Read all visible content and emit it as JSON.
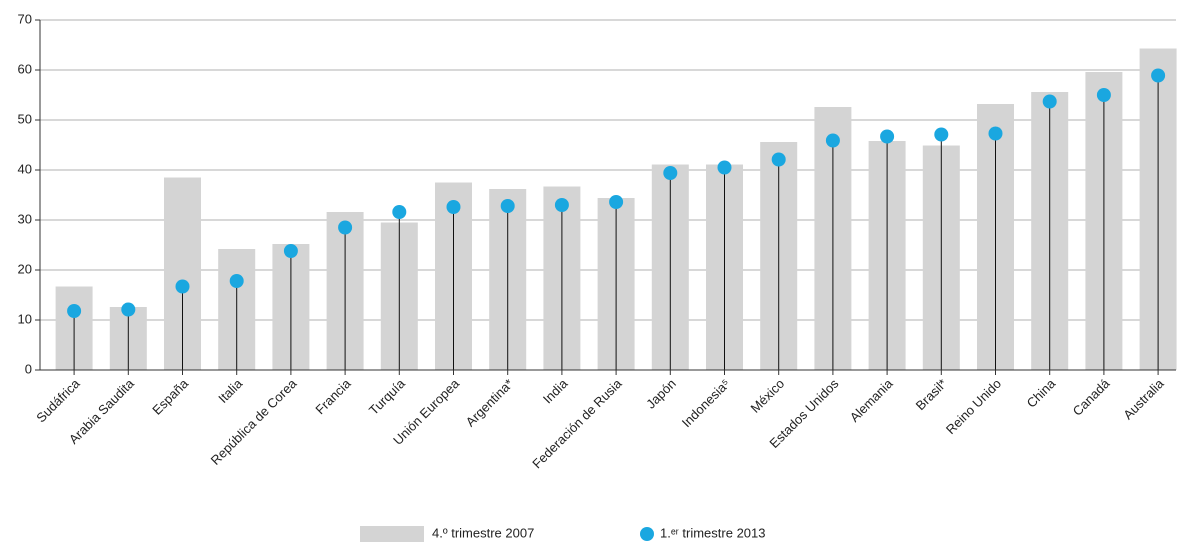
{
  "chart_data": {
    "type": "bar",
    "categories": [
      "Sudáfrica",
      "Arabia Saudita",
      "España",
      "Italia",
      "República de Corea",
      "Francia",
      "Turquía",
      "Unión Europea",
      "Argentina*",
      "India",
      "Federación de Rusia",
      "Japón",
      "Indonesia⁵",
      "México",
      "Estados Unidos",
      "Alemania",
      "Brasil*",
      "Reino Unido",
      "China",
      "Canadá",
      "Australia"
    ],
    "series": [
      {
        "name": "4.º trimestre 2007",
        "color": "#d4d4d4",
        "values": [
          16.7,
          12.6,
          38.5,
          24.2,
          25.2,
          31.6,
          29.5,
          37.5,
          36.2,
          36.7,
          34.4,
          41.1,
          41.1,
          45.6,
          52.6,
          45.8,
          44.9,
          53.2,
          55.6,
          59.6,
          64.3
        ]
      },
      {
        "name": "1.ᵉʳ trimestre 2013",
        "color": "#1aa7e0",
        "values": [
          11.8,
          12.1,
          16.7,
          17.8,
          23.8,
          28.5,
          31.6,
          32.6,
          32.8,
          33.0,
          33.6,
          39.4,
          40.5,
          42.1,
          45.9,
          46.7,
          47.1,
          47.3,
          53.7,
          55.0,
          58.9
        ]
      }
    ],
    "ylim": [
      0,
      70
    ],
    "yticks": [
      0,
      10,
      20,
      30,
      40,
      50,
      60,
      70
    ],
    "grid": true
  }
}
